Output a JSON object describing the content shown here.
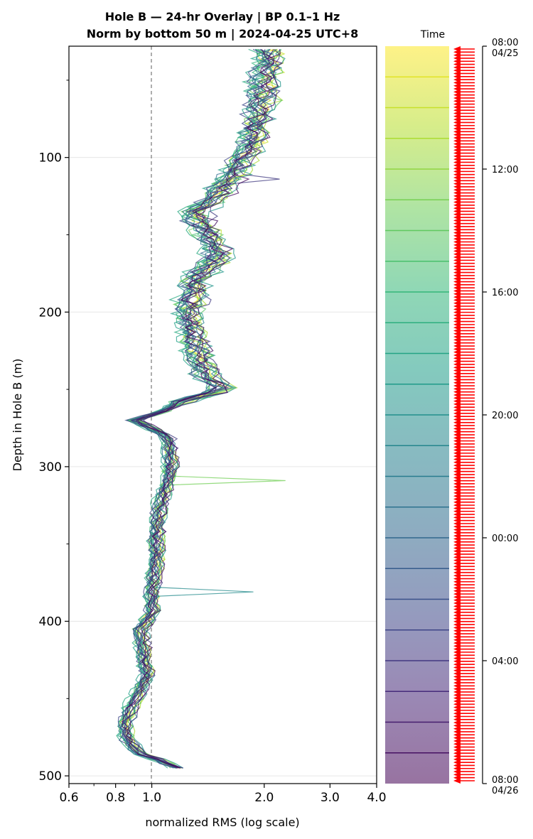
{
  "chart_data": {
    "type": "line",
    "title": "Hole B — 24-hr Overlay  |  BP 0.1–1 Hz",
    "subtitle": "Norm by bottom 50 m  |  2024-04-25 UTC+8",
    "xlabel": "normalized RMS  (log scale)",
    "ylabel": "Depth in Hole B (m)",
    "x_scale": "log",
    "xlim": [
      0.6,
      4.0
    ],
    "ylim": [
      505,
      28
    ],
    "x_ticks": [
      "0.6",
      "0.8",
      "1.0",
      "2.0",
      "3.0",
      "4.0"
    ],
    "x_tick_values": [
      0.6,
      0.8,
      1.0,
      2.0,
      3.0,
      4.0
    ],
    "y_ticks": [
      "100",
      "200",
      "300",
      "400",
      "500"
    ],
    "y_tick_values": [
      100,
      200,
      300,
      400,
      500
    ],
    "reference_line": {
      "x": 1.0,
      "style": "dashed"
    },
    "grid": "horizontal at major y ticks",
    "series_count": 24,
    "series_colormap": "viridis (darkest at 08:00 04/25 → ... ; colorbar: yellow top, purple bottom)",
    "median_profile": [
      [
        30,
        2.05
      ],
      [
        50,
        2.0
      ],
      [
        70,
        1.95
      ],
      [
        90,
        1.85
      ],
      [
        110,
        1.65
      ],
      [
        125,
        1.5
      ],
      [
        135,
        1.3
      ],
      [
        150,
        1.42
      ],
      [
        165,
        1.5
      ],
      [
        180,
        1.3
      ],
      [
        200,
        1.25
      ],
      [
        220,
        1.3
      ],
      [
        240,
        1.38
      ],
      [
        250,
        1.55
      ],
      [
        258,
        1.2
      ],
      [
        265,
        1.05
      ],
      [
        270,
        0.9
      ],
      [
        280,
        1.1
      ],
      [
        290,
        1.12
      ],
      [
        300,
        1.12
      ],
      [
        310,
        1.1
      ],
      [
        325,
        1.05
      ],
      [
        340,
        1.03
      ],
      [
        360,
        1.03
      ],
      [
        380,
        1.0
      ],
      [
        395,
        1.0
      ],
      [
        405,
        0.93
      ],
      [
        420,
        0.95
      ],
      [
        435,
        0.97
      ],
      [
        450,
        0.9
      ],
      [
        465,
        0.85
      ],
      [
        475,
        0.85
      ],
      [
        485,
        0.92
      ],
      [
        490,
        1.05
      ],
      [
        496,
        1.2
      ]
    ],
    "spikes": [
      {
        "depth": 308,
        "value": 2.28
      },
      {
        "depth": 382,
        "value": 1.87
      },
      {
        "depth": 113,
        "value": 2.2
      }
    ],
    "colorbar": {
      "label": "Time",
      "tick_labels": [
        "08:00\n04/25",
        "12:00",
        "16:00",
        "20:00",
        "00:00",
        "04:00",
        "08:00\n04/26"
      ],
      "colors_top_to_bottom": [
        "#fde725",
        "#b5de2b",
        "#6ece58",
        "#35b779",
        "#1f9e89",
        "#26828e",
        "#31688e",
        "#3e4989",
        "#482878",
        "#440154"
      ],
      "marker": "red left-pointing arrows, one per trace time"
    }
  }
}
